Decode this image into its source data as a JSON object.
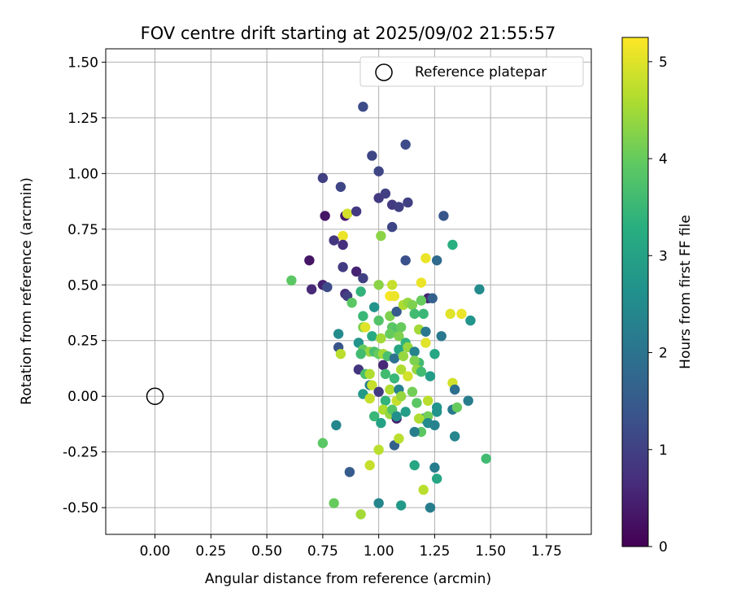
{
  "chart_data": {
    "type": "scatter",
    "title": "FOV centre drift starting at 2025/09/02 21:55:57",
    "xlabel": "Angular distance from reference (arcmin)",
    "ylabel": "Rotation from reference (arcmin)",
    "xlim": [
      -0.22,
      1.95
    ],
    "ylim": [
      -0.62,
      1.56
    ],
    "xticks": [
      "0.00",
      "0.25",
      "0.50",
      "0.75",
      "1.00",
      "1.25",
      "1.50",
      "1.75"
    ],
    "yticks": [
      "-0.50",
      "-0.25",
      "0.00",
      "0.25",
      "0.50",
      "0.75",
      "1.00",
      "1.25",
      "1.50"
    ],
    "xtick_values": [
      0,
      0.25,
      0.5,
      0.75,
      1.0,
      1.25,
      1.5,
      1.75
    ],
    "ytick_values": [
      -0.5,
      -0.25,
      0,
      0.25,
      0.5,
      0.75,
      1.0,
      1.25,
      1.5
    ],
    "grid": true,
    "legend": {
      "placement": "top-right",
      "label": "Reference platepar"
    },
    "reference_point": {
      "x": 0.0,
      "y": 0.0
    },
    "colorbar": {
      "label": "Hours from first FF file",
      "range": [
        0,
        5.25
      ],
      "ticks": [
        "0",
        "1",
        "2",
        "3",
        "4",
        "5"
      ],
      "tick_values": [
        0,
        1,
        2,
        3,
        4,
        5
      ],
      "colormap": "viridis"
    },
    "points": [
      [
        0.93,
        1.3,
        1.2
      ],
      [
        0.97,
        1.08,
        1.1
      ],
      [
        1.12,
        1.13,
        1.2
      ],
      [
        0.75,
        0.98,
        1.0
      ],
      [
        0.83,
        0.94,
        1.1
      ],
      [
        1.0,
        1.01,
        1.1
      ],
      [
        1.0,
        0.89,
        0.9
      ],
      [
        1.03,
        0.91,
        1.0
      ],
      [
        1.06,
        0.86,
        0.9
      ],
      [
        1.09,
        0.85,
        1.0
      ],
      [
        1.13,
        0.87,
        1.0
      ],
      [
        1.29,
        0.81,
        1.4
      ],
      [
        0.76,
        0.81,
        0.3
      ],
      [
        0.85,
        0.81,
        0.4
      ],
      [
        0.86,
        0.82,
        4.9
      ],
      [
        0.9,
        0.83,
        0.9
      ],
      [
        1.06,
        0.76,
        1.1
      ],
      [
        0.8,
        0.7,
        0.8
      ],
      [
        0.84,
        0.72,
        5.1
      ],
      [
        0.84,
        0.68,
        0.7
      ],
      [
        1.01,
        0.72,
        4.3
      ],
      [
        1.33,
        0.68,
        3.3
      ],
      [
        0.69,
        0.61,
        0.3
      ],
      [
        0.84,
        0.58,
        0.9
      ],
      [
        0.9,
        0.56,
        0.5
      ],
      [
        1.12,
        0.61,
        1.3
      ],
      [
        1.21,
        0.62,
        5.1
      ],
      [
        1.26,
        0.61,
        1.8
      ],
      [
        0.93,
        0.53,
        1.0
      ],
      [
        0.61,
        0.52,
        3.9
      ],
      [
        0.7,
        0.48,
        0.6
      ],
      [
        0.75,
        0.5,
        0.5
      ],
      [
        0.77,
        0.49,
        1.2
      ],
      [
        0.85,
        0.46,
        0.7
      ],
      [
        0.86,
        0.45,
        1.0
      ],
      [
        0.92,
        0.47,
        3.4
      ],
      [
        1.0,
        0.5,
        4.3
      ],
      [
        1.05,
        0.45,
        5.2
      ],
      [
        1.06,
        0.5,
        4.8
      ],
      [
        1.07,
        0.45,
        5.1
      ],
      [
        1.19,
        0.51,
        5.1
      ],
      [
        1.22,
        0.44,
        0.5
      ],
      [
        1.24,
        0.44,
        1.6
      ],
      [
        1.45,
        0.48,
        2.5
      ],
      [
        0.88,
        0.42,
        3.9
      ],
      [
        0.93,
        0.36,
        3.5
      ],
      [
        0.98,
        0.4,
        2.7
      ],
      [
        1.05,
        0.36,
        4.2
      ],
      [
        1.08,
        0.38,
        1.5
      ],
      [
        1.11,
        0.41,
        4.6
      ],
      [
        1.13,
        0.42,
        4.4
      ],
      [
        1.15,
        0.41,
        4.2
      ],
      [
        1.16,
        0.37,
        3.6
      ],
      [
        1.19,
        0.43,
        4.0
      ],
      [
        1.2,
        0.37,
        3.5
      ],
      [
        1.32,
        0.37,
        5.0
      ],
      [
        1.37,
        0.37,
        5.1
      ],
      [
        1.41,
        0.34,
        2.7
      ],
      [
        0.82,
        0.28,
        2.5
      ],
      [
        0.93,
        0.31,
        4.2
      ],
      [
        0.94,
        0.31,
        5.0
      ],
      [
        0.97,
        0.27,
        3.2
      ],
      [
        1.0,
        0.34,
        3.8
      ],
      [
        1.06,
        0.31,
        3.9
      ],
      [
        1.08,
        0.3,
        3.8
      ],
      [
        1.1,
        0.31,
        4.0
      ],
      [
        1.01,
        0.26,
        4.5
      ],
      [
        1.05,
        0.28,
        4.0
      ],
      [
        1.09,
        0.27,
        4.2
      ],
      [
        1.12,
        0.24,
        3.4
      ],
      [
        1.18,
        0.3,
        4.5
      ],
      [
        1.21,
        0.29,
        2.1
      ],
      [
        1.21,
        0.24,
        5.0
      ],
      [
        1.28,
        0.27,
        2.1
      ],
      [
        0.82,
        0.22,
        1.4
      ],
      [
        0.91,
        0.24,
        2.7
      ],
      [
        0.93,
        0.21,
        4.0
      ],
      [
        0.96,
        0.2,
        4.4
      ],
      [
        0.98,
        0.2,
        3.7
      ],
      [
        1.0,
        0.19,
        4.0
      ],
      [
        1.02,
        0.19,
        4.5
      ],
      [
        1.04,
        0.18,
        3.7
      ],
      [
        1.07,
        0.17,
        2.0
      ],
      [
        1.09,
        0.21,
        3.1
      ],
      [
        1.11,
        0.18,
        4.4
      ],
      [
        1.13,
        0.22,
        4.4
      ],
      [
        1.16,
        0.2,
        2.3
      ],
      [
        1.18,
        0.15,
        3.6
      ],
      [
        1.16,
        0.16,
        4.2
      ],
      [
        1.25,
        0.19,
        3.1
      ],
      [
        0.83,
        0.19,
        4.7
      ],
      [
        0.92,
        0.19,
        3.6
      ],
      [
        0.91,
        0.12,
        0.8
      ],
      [
        0.94,
        0.1,
        3.7
      ],
      [
        0.96,
        0.1,
        4.6
      ],
      [
        1.02,
        0.14,
        0.6
      ],
      [
        1.03,
        0.1,
        3.6
      ],
      [
        1.07,
        0.08,
        3.5
      ],
      [
        1.1,
        0.12,
        4.6
      ],
      [
        1.13,
        0.09,
        4.9
      ],
      [
        1.17,
        0.12,
        4.4
      ],
      [
        1.19,
        0.11,
        3.6
      ],
      [
        1.23,
        0.09,
        2.9
      ],
      [
        0.96,
        0.05,
        2.2
      ],
      [
        0.97,
        0.05,
        4.8
      ],
      [
        1.0,
        0.02,
        0.9
      ],
      [
        1.05,
        0.03,
        4.6
      ],
      [
        1.09,
        0.03,
        2.3
      ],
      [
        1.15,
        0.02,
        4.1
      ],
      [
        0.93,
        0.01,
        2.8
      ],
      [
        1.33,
        0.06,
        4.9
      ],
      [
        1.34,
        0.03,
        1.9
      ],
      [
        0.96,
        -0.01,
        4.8
      ],
      [
        1.03,
        -0.02,
        3.4
      ],
      [
        1.08,
        -0.02,
        4.8
      ],
      [
        1.1,
        0.0,
        4.4
      ],
      [
        1.17,
        -0.03,
        3.9
      ],
      [
        1.22,
        -0.02,
        4.7
      ],
      [
        1.26,
        -0.05,
        2.7
      ],
      [
        1.33,
        -0.06,
        2.1
      ],
      [
        1.35,
        -0.05,
        4.0
      ],
      [
        1.4,
        -0.02,
        2.2
      ],
      [
        1.02,
        -0.06,
        4.6
      ],
      [
        1.05,
        -0.08,
        4.4
      ],
      [
        1.06,
        -0.06,
        3.8
      ],
      [
        1.08,
        -0.1,
        0.4
      ],
      [
        1.08,
        -0.09,
        2.6
      ],
      [
        1.12,
        -0.07,
        2.9
      ],
      [
        1.2,
        -0.1,
        2.6
      ],
      [
        1.22,
        -0.09,
        4.1
      ],
      [
        1.26,
        -0.07,
        2.7
      ],
      [
        0.81,
        -0.13,
        2.4
      ],
      [
        0.98,
        -0.09,
        3.5
      ],
      [
        1.01,
        -0.12,
        3.0
      ],
      [
        1.18,
        -0.1,
        4.6
      ],
      [
        1.19,
        -0.16,
        3.9
      ],
      [
        1.16,
        -0.16,
        2.2
      ],
      [
        1.22,
        -0.12,
        2.5
      ],
      [
        1.25,
        -0.13,
        2.3
      ],
      [
        1.34,
        -0.18,
        2.4
      ],
      [
        0.75,
        -0.21,
        3.9
      ],
      [
        1.07,
        -0.22,
        1.6
      ],
      [
        1.09,
        -0.19,
        4.7
      ],
      [
        1.0,
        -0.24,
        4.7
      ],
      [
        0.96,
        -0.31,
        4.8
      ],
      [
        0.87,
        -0.34,
        1.5
      ],
      [
        1.16,
        -0.31,
        3.1
      ],
      [
        1.25,
        -0.32,
        2.2
      ],
      [
        1.26,
        -0.37,
        3.1
      ],
      [
        1.48,
        -0.28,
        3.6
      ],
      [
        1.2,
        -0.42,
        4.7
      ],
      [
        0.8,
        -0.48,
        4.0
      ],
      [
        0.92,
        -0.53,
        4.5
      ],
      [
        1.0,
        -0.48,
        2.4
      ],
      [
        1.1,
        -0.49,
        2.8
      ],
      [
        1.23,
        -0.5,
        2.2
      ]
    ]
  }
}
